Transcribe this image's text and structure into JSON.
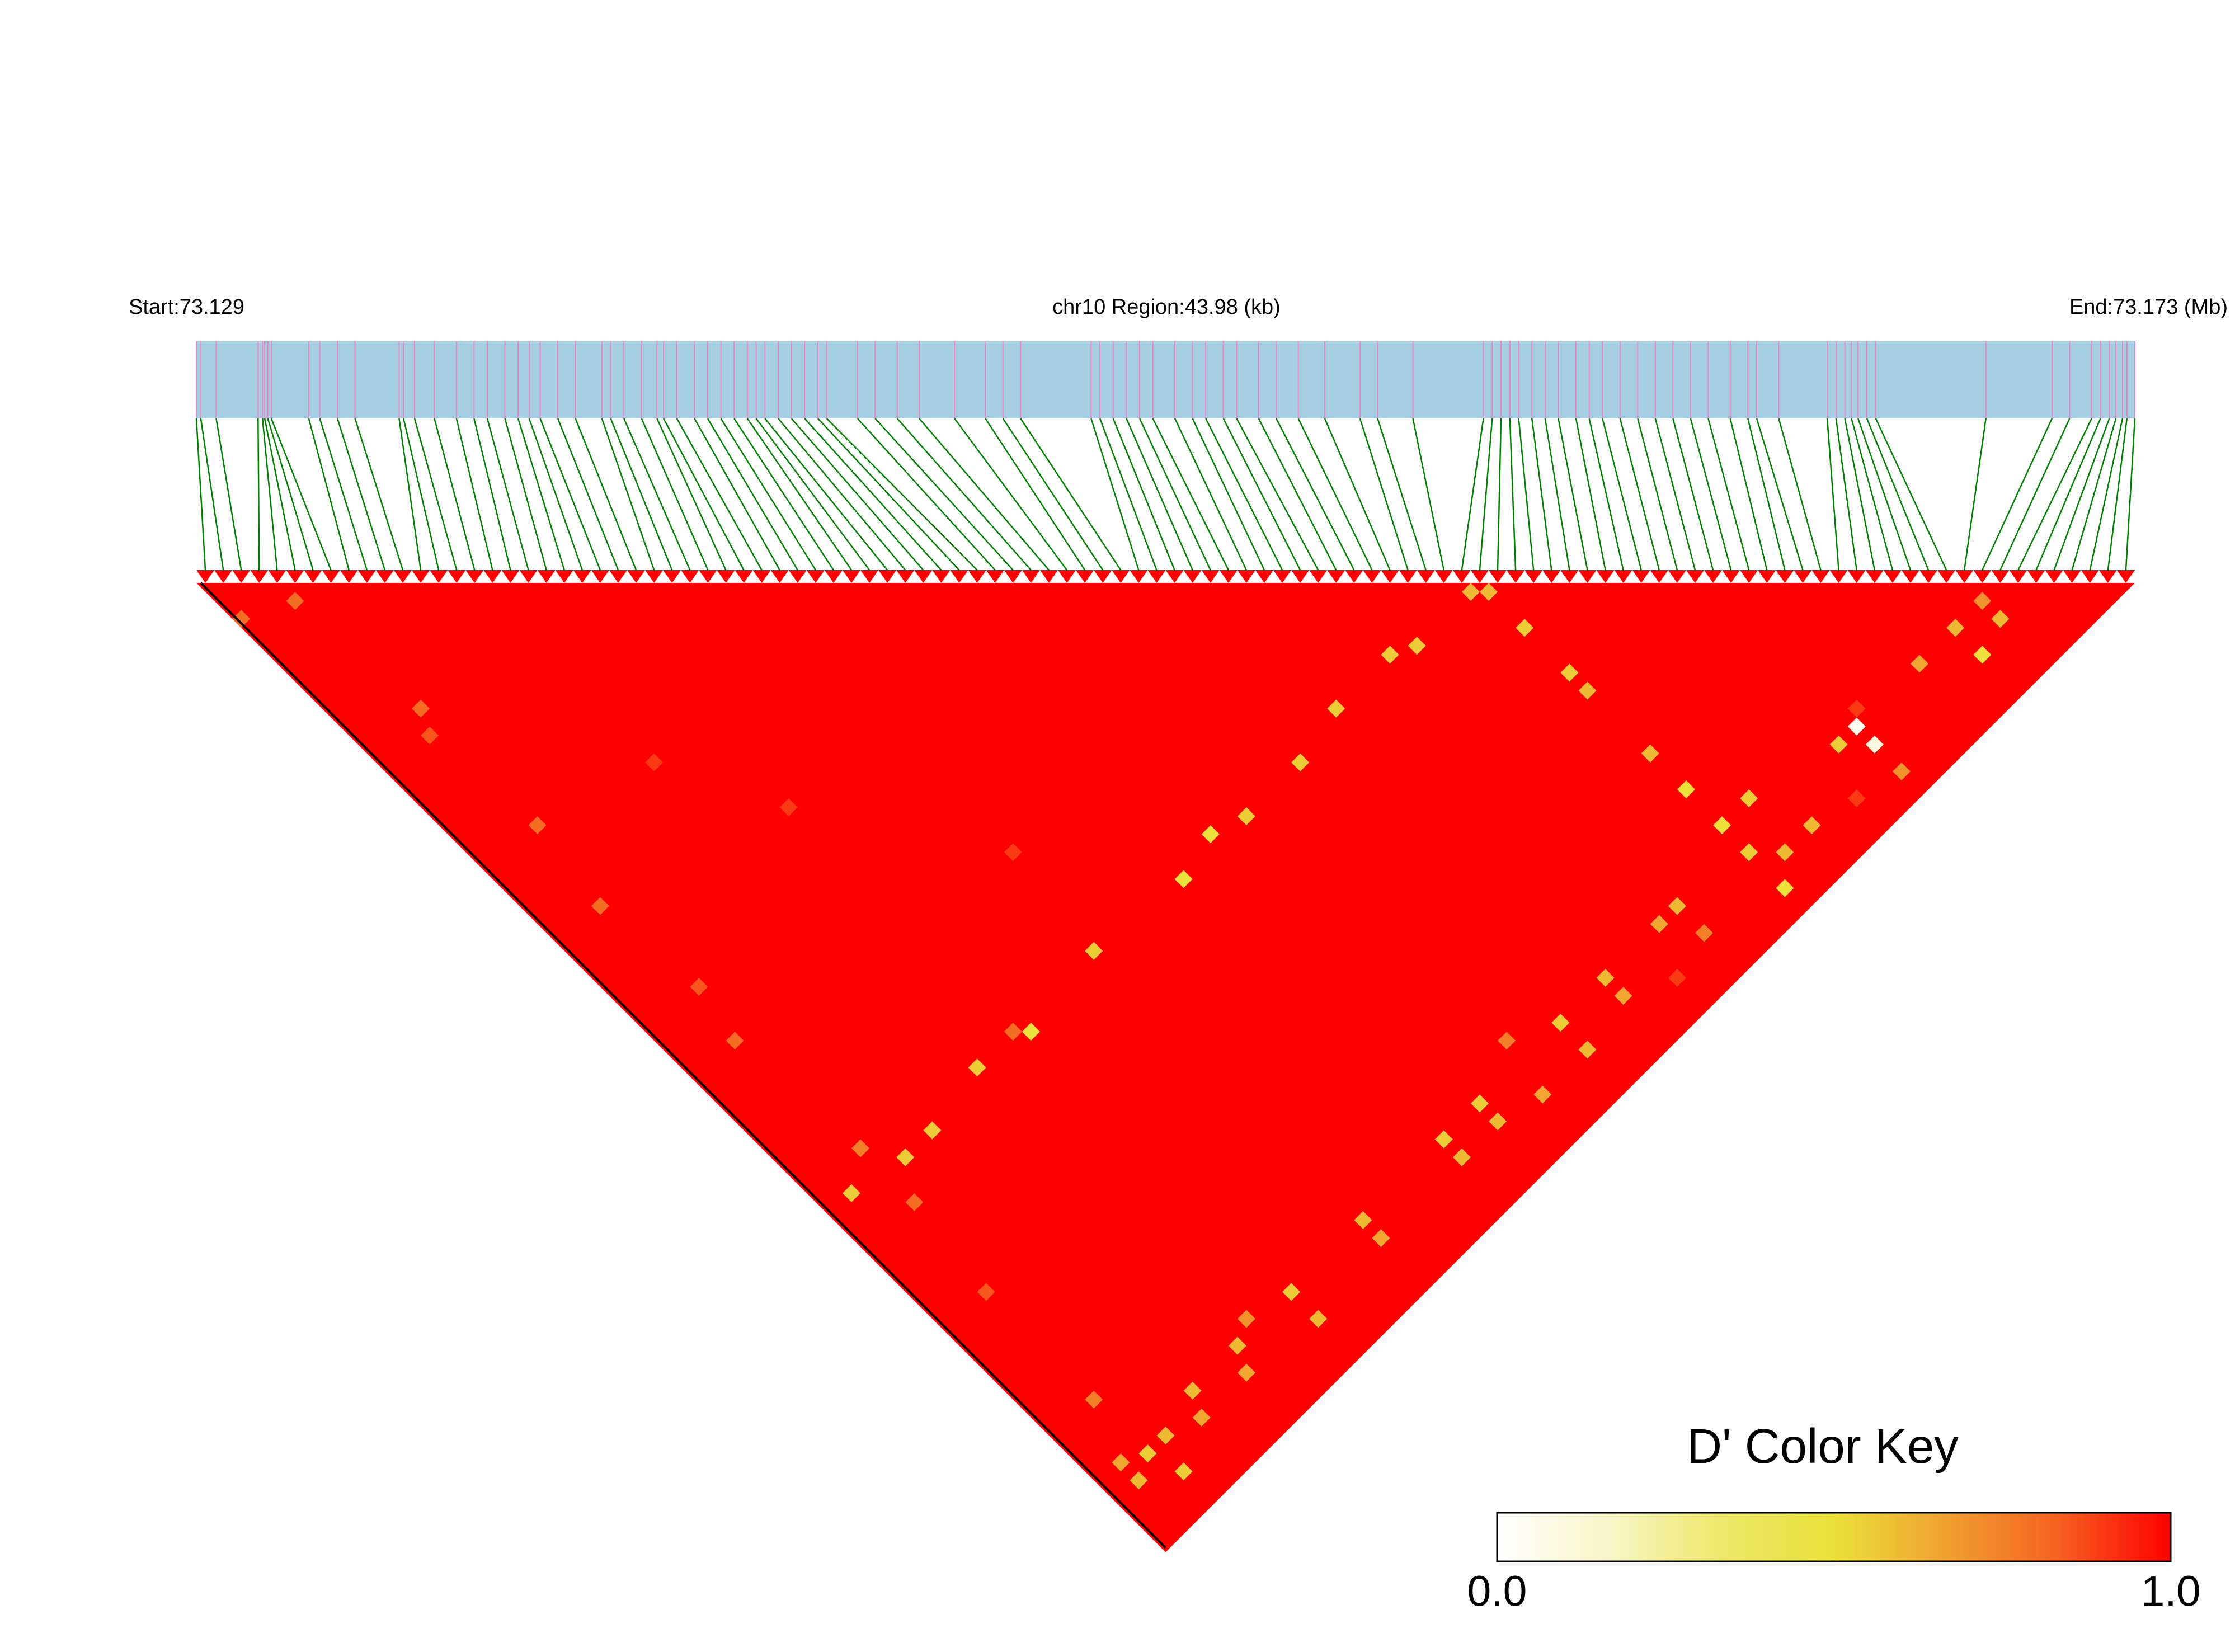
{
  "chart_data": {
    "type": "ld_heatmap",
    "start_label": "Start:73.129",
    "region_label": "chr10 Region:43.98 (kb)",
    "end_label": "End:73.173 (Mb)",
    "xlim": [
      0,
      43.98
    ],
    "snp_positions": [
      0.0,
      0.1,
      0.45,
      1.4,
      1.5,
      1.55,
      1.62,
      1.7,
      2.55,
      2.8,
      3.2,
      3.6,
      4.6,
      4.7,
      4.95,
      5.4,
      5.9,
      6.3,
      6.6,
      7.0,
      7.3,
      7.55,
      7.8,
      8.2,
      8.6,
      9.2,
      9.4,
      9.7,
      10.1,
      10.45,
      10.6,
      10.9,
      11.3,
      11.6,
      11.9,
      12.2,
      12.5,
      12.7,
      12.9,
      13.2,
      13.5,
      13.8,
      14.1,
      14.3,
      15.0,
      15.4,
      15.9,
      16.4,
      17.2,
      17.9,
      18.3,
      18.7,
      20.3,
      20.5,
      20.8,
      21.1,
      21.4,
      21.7,
      22.2,
      22.6,
      22.9,
      23.3,
      23.6,
      24.1,
      24.5,
      25.0,
      25.6,
      26.4,
      26.8,
      27.6,
      29.2,
      29.4,
      29.6,
      29.8,
      30.0,
      30.3,
      30.6,
      30.9,
      31.3,
      31.6,
      31.9,
      32.3,
      32.7,
      33.1,
      33.5,
      33.9,
      34.3,
      34.8,
      35.2,
      35.4,
      35.9,
      37.0,
      37.2,
      37.4,
      37.55,
      37.7,
      37.9,
      38.1,
      40.6,
      42.1,
      42.5,
      43.0,
      43.2,
      43.4,
      43.55,
      43.7,
      43.8,
      43.98
    ],
    "track_color": "#a6cee3",
    "snp_line_color": "#e586c6",
    "link_color": "#008000",
    "cells": [
      {
        "i": 70,
        "j": 71,
        "d": 0.6
      },
      {
        "i": 71,
        "j": 72,
        "d": 0.6
      },
      {
        "i": 71,
        "j": 76,
        "d": 0.55
      },
      {
        "i": 64,
        "j": 71,
        "d": 0.55
      },
      {
        "i": 62,
        "j": 70,
        "d": 0.55
      },
      {
        "i": 71,
        "j": 81,
        "d": 0.55
      },
      {
        "i": 71,
        "j": 83,
        "d": 0.6
      },
      {
        "i": 56,
        "j": 70,
        "d": 0.55
      },
      {
        "i": 51,
        "j": 71,
        "d": 0.55
      },
      {
        "i": 71,
        "j": 90,
        "d": 0.6
      },
      {
        "i": 71,
        "j": 94,
        "d": 0.5
      },
      {
        "i": 45,
        "j": 71,
        "d": 0.55
      },
      {
        "i": 42,
        "j": 70,
        "d": 0.5
      },
      {
        "i": 38,
        "j": 71,
        "d": 0.5
      },
      {
        "i": 29,
        "j": 70,
        "d": 0.55
      },
      {
        "i": 21,
        "j": 71,
        "d": 0.5
      },
      {
        "i": 20,
        "j": 70,
        "d": 0.8
      },
      {
        "i": 16,
        "j": 70,
        "d": 0.55
      },
      {
        "i": 10,
        "j": 71,
        "d": 0.55
      },
      {
        "i": 7,
        "j": 71,
        "d": 0.55
      },
      {
        "i": 2,
        "j": 70,
        "d": 0.55
      },
      {
        "i": 95,
        "j": 100,
        "d": 0.6
      },
      {
        "i": 95,
        "j": 103,
        "d": 0.5
      },
      {
        "i": 98,
        "j": 100,
        "d": 0.7
      },
      {
        "i": 98,
        "j": 102,
        "d": 0.6
      },
      {
        "i": 91,
        "j": 100,
        "d": 0.65
      },
      {
        "i": 84,
        "j": 102,
        "d": 0.1
      },
      {
        "i": 84,
        "j": 100,
        "d": 0.05
      },
      {
        "i": 82,
        "j": 100,
        "d": 0.55
      },
      {
        "i": 84,
        "j": 105,
        "d": 0.7
      },
      {
        "i": 74,
        "j": 98,
        "d": 0.55
      },
      {
        "i": 71,
        "j": 98,
        "d": 0.5
      },
      {
        "i": 71,
        "j": 101,
        "d": 0.55
      },
      {
        "i": 73,
        "j": 103,
        "d": 0.6
      },
      {
        "i": 71,
        "j": 105,
        "d": 0.5
      },
      {
        "i": 76,
        "j": 103,
        "d": 0.6
      },
      {
        "i": 64,
        "j": 100,
        "d": 0.6
      },
      {
        "i": 62,
        "j": 100,
        "d": 0.65
      },
      {
        "i": 64,
        "j": 103,
        "d": 0.75
      },
      {
        "i": 56,
        "j": 100,
        "d": 0.6
      },
      {
        "i": 56,
        "j": 102,
        "d": 0.65
      },
      {
        "i": 51,
        "j": 100,
        "d": 0.55
      },
      {
        "i": 51,
        "j": 103,
        "d": 0.6
      },
      {
        "i": 47,
        "j": 98,
        "d": 0.75
      },
      {
        "i": 42,
        "j": 100,
        "d": 0.55
      },
      {
        "i": 42,
        "j": 102,
        "d": 0.6
      },
      {
        "i": 46,
        "j": 103,
        "d": 0.65
      },
      {
        "i": 38,
        "j": 100,
        "d": 0.55
      },
      {
        "i": 38,
        "j": 102,
        "d": 0.6
      },
      {
        "i": 29,
        "j": 100,
        "d": 0.6
      },
      {
        "i": 29,
        "j": 102,
        "d": 0.65
      },
      {
        "i": 21,
        "j": 100,
        "d": 0.55
      },
      {
        "i": 21,
        "j": 103,
        "d": 0.6
      },
      {
        "i": 17,
        "j": 99,
        "d": 0.7
      },
      {
        "i": 15,
        "j": 100,
        "d": 0.6
      },
      {
        "i": 14,
        "j": 102,
        "d": 0.65
      },
      {
        "i": 10,
        "j": 100,
        "d": 0.6
      },
      {
        "i": 9,
        "j": 102,
        "d": 0.65
      },
      {
        "i": 6,
        "j": 101,
        "d": 0.6
      },
      {
        "i": 4,
        "j": 101,
        "d": 0.55
      },
      {
        "i": 2,
        "j": 100,
        "d": 0.65
      },
      {
        "i": 2,
        "j": 102,
        "d": 0.6
      },
      {
        "i": 5,
        "j": 104,
        "d": 0.55
      },
      {
        "i": 0,
        "j": 4,
        "d": 0.8
      },
      {
        "i": 4,
        "j": 6,
        "d": 0.8
      },
      {
        "i": 5,
        "j": 19,
        "d": 0.8
      },
      {
        "i": 4,
        "j": 21,
        "d": 0.85
      },
      {
        "i": 5,
        "j": 32,
        "d": 0.8
      },
      {
        "i": 4,
        "j": 40,
        "d": 0.8
      },
      {
        "i": 5,
        "j": 50,
        "d": 0.85
      },
      {
        "i": 4,
        "j": 55,
        "d": 0.8
      },
      {
        "i": 5,
        "j": 68,
        "d": 0.75
      },
      {
        "i": 5,
        "j": 74,
        "d": 0.8
      },
      {
        "i": 4,
        "j": 83,
        "d": 0.85
      },
      {
        "i": 4,
        "j": 95,
        "d": 0.75
      },
      {
        "i": 20,
        "j": 45,
        "d": 0.9
      },
      {
        "i": 30,
        "j": 60,
        "d": 0.9
      },
      {
        "i": 15,
        "j": 35,
        "d": 0.9
      },
      {
        "i": 85,
        "j": 99,
        "d": 0.9
      },
      {
        "i": 80,
        "j": 104,
        "d": 0.9
      },
      {
        "i": 60,
        "j": 104,
        "d": 0.9
      }
    ],
    "color_key": {
      "title": "D' Color Key",
      "lim": [
        0,
        1
      ],
      "colors": [
        "#ffffff",
        "#f8f6c8",
        "#eee86a",
        "#ebe13a",
        "#f0a030",
        "#f66020",
        "#ff0000"
      ],
      "ticks": [
        {
          "value": 0,
          "label": "0.0"
        },
        {
          "value": 1,
          "label": "1.0"
        }
      ]
    }
  }
}
